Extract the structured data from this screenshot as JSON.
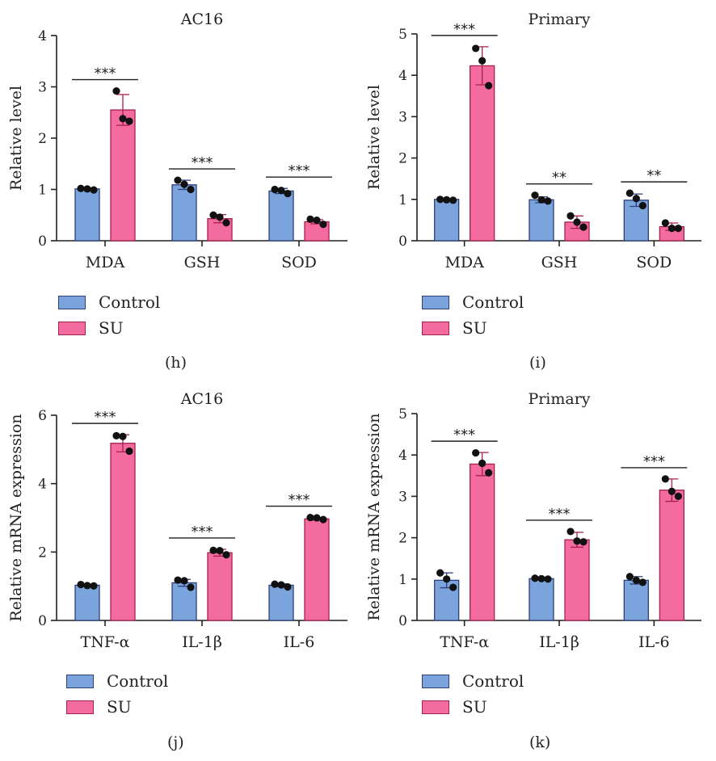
{
  "legend": {
    "control": "Control",
    "su": "SU"
  },
  "colors": {
    "control_fill": "#7ba3dc",
    "control_edge": "#2d3f7a",
    "su_fill": "#f46ba0",
    "su_edge": "#a3224d",
    "dot": "#111111"
  },
  "captions": {
    "h": "(h)",
    "i": "(i)",
    "j": "(j)",
    "k": "(k)"
  },
  "chart_data": [
    {
      "id": "h",
      "type": "bar",
      "title": "AC16",
      "ylabel": "Relative level",
      "ylim": [
        0,
        4
      ],
      "yticks": [
        0,
        1,
        2,
        3,
        4
      ],
      "categories": [
        "MDA",
        "GSH",
        "SOD"
      ],
      "series": [
        {
          "name": "Control",
          "values": [
            1.01,
            1.09,
            0.97
          ],
          "errors": [
            0.02,
            0.09,
            0.05
          ],
          "points": [
            [
              1.02,
              1.01,
              0.99
            ],
            [
              1.18,
              1.1,
              1.0
            ],
            [
              1.0,
              0.98,
              0.92
            ]
          ]
        },
        {
          "name": "SU",
          "values": [
            2.55,
            0.43,
            0.37
          ],
          "errors": [
            0.3,
            0.08,
            0.04
          ],
          "points": [
            [
              2.92,
              2.38,
              2.33
            ],
            [
              0.5,
              0.46,
              0.35
            ],
            [
              0.42,
              0.4,
              0.32
            ]
          ]
        }
      ],
      "significance": [
        "***",
        "***",
        "***"
      ]
    },
    {
      "id": "i",
      "type": "bar",
      "title": "Primary",
      "ylabel": "Relative level",
      "ylim": [
        0,
        5
      ],
      "yticks": [
        0,
        1,
        2,
        3,
        4,
        5
      ],
      "categories": [
        "MDA",
        "GSH",
        "SOD"
      ],
      "series": [
        {
          "name": "Control",
          "values": [
            1.0,
            0.99,
            0.98
          ],
          "errors": [
            0.02,
            0.07,
            0.15
          ],
          "points": [
            [
              1.0,
              0.99,
              0.98
            ],
            [
              1.1,
              0.99,
              0.96
            ],
            [
              1.15,
              1.02,
              0.85
            ]
          ]
        },
        {
          "name": "SU",
          "values": [
            4.23,
            0.45,
            0.34
          ],
          "errors": [
            0.46,
            0.15,
            0.09
          ],
          "points": [
            [
              4.65,
              4.35,
              3.75
            ],
            [
              0.6,
              0.45,
              0.33
            ],
            [
              0.43,
              0.3,
              0.3
            ]
          ]
        }
      ],
      "significance": [
        "***",
        "**",
        "**"
      ]
    },
    {
      "id": "j",
      "type": "bar",
      "title": "AC16",
      "ylabel": "Relative mRNA expression",
      "ylim": [
        0,
        6
      ],
      "yticks": [
        0,
        2,
        4,
        6
      ],
      "categories": [
        "TNF-α",
        "IL-1β",
        "IL-6"
      ],
      "series": [
        {
          "name": "Control",
          "values": [
            1.03,
            1.1,
            1.03
          ],
          "errors": [
            0.03,
            0.1,
            0.04
          ],
          "points": [
            [
              1.05,
              1.02,
              1.01
            ],
            [
              1.18,
              1.16,
              0.97
            ],
            [
              1.06,
              1.04,
              0.98
            ]
          ]
        },
        {
          "name": "SU",
          "values": [
            5.18,
            1.98,
            2.97
          ],
          "errors": [
            0.25,
            0.1,
            0.04
          ],
          "points": [
            [
              5.4,
              5.38,
              4.95
            ],
            [
              2.05,
              2.04,
              1.92
            ],
            [
              3.01,
              3.0,
              2.95
            ]
          ]
        }
      ],
      "significance": [
        "***",
        "***",
        "***"
      ]
    },
    {
      "id": "k",
      "type": "bar",
      "title": "Primary",
      "ylabel": "Relative mRNA expression",
      "ylim": [
        0,
        5
      ],
      "yticks": [
        0,
        1,
        2,
        3,
        4,
        5
      ],
      "categories": [
        "TNF-α",
        "IL-1β",
        "IL-6"
      ],
      "series": [
        {
          "name": "Control",
          "values": [
            0.97,
            1.01,
            0.97
          ],
          "errors": [
            0.18,
            0.02,
            0.09
          ],
          "points": [
            [
              1.15,
              1.0,
              0.8
            ],
            [
              1.02,
              1.01,
              1.0
            ],
            [
              1.06,
              0.97,
              0.92
            ]
          ]
        },
        {
          "name": "SU",
          "values": [
            3.78,
            1.95,
            3.15
          ],
          "errors": [
            0.28,
            0.18,
            0.27
          ],
          "points": [
            [
              4.05,
              3.8,
              3.57
            ],
            [
              2.15,
              1.92,
              1.9
            ],
            [
              3.42,
              3.12,
              3.0
            ]
          ]
        }
      ],
      "significance": [
        "***",
        "***",
        "***"
      ]
    }
  ]
}
